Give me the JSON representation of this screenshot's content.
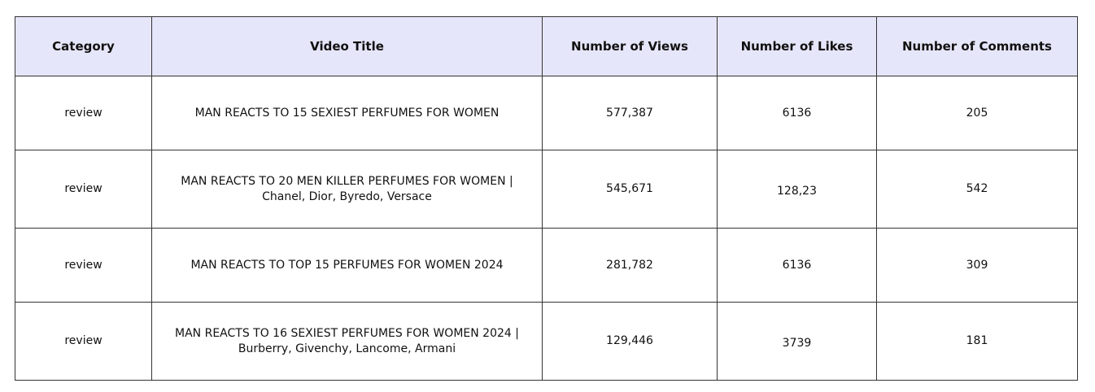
{
  "table": {
    "headers": [
      "Category",
      "Video Title",
      "Number of Views",
      "Number of Likes",
      "Number of Comments"
    ],
    "rows": [
      {
        "category": "review",
        "title_line1": "MAN REACTS TO 15 SEXIEST PERFUMES FOR WOMEN",
        "title_line2": "",
        "views": "577,387",
        "likes": "6136",
        "comments": "205"
      },
      {
        "category": "review",
        "title_line1": "MAN REACTS TO 20 MEN KILLER PERFUMES FOR WOMEN |",
        "title_line2": "Chanel, Dior, Byredo, Versace",
        "views": "545,671",
        "likes": "128,23",
        "comments": "542"
      },
      {
        "category": "review",
        "title_line1": "MAN REACTS TO TOP 15 PERFUMES FOR WOMEN 2024",
        "title_line2": "",
        "views": "281,782",
        "likes": "6136",
        "comments": "309"
      },
      {
        "category": "review",
        "title_line1": "MAN REACTS TO 16 SEXIEST PERFUMES FOR WOMEN 2024 |",
        "title_line2": "Burberry, Givenchy, Lancome, Armani",
        "views": "129,446",
        "likes": "3739",
        "comments": "181"
      }
    ]
  },
  "colors": {
    "header_background": "#e6e6fa",
    "border": "#333333"
  }
}
